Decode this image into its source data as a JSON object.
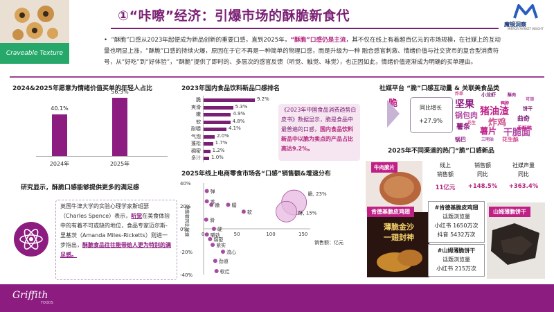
{
  "header": {
    "hero_caption": "Craveable Texture",
    "title": "①“咔嚓”经济：引爆市场的酥脆新食代",
    "brand_name": "魔镜洞察",
    "brand_sub": "MIRROR MARKET INSIGHT"
  },
  "intro": {
    "p1": "“酥脆”口感从2023年起便成为新品创新的重要口感，直到2025年，",
    "p1_hl": "“酥脆”口感仍是主流",
    "p1b": "，其不仅在线上有着超百亿元的市场规模，在社媒上的互动",
    "p2": "量也明显上涨，“酥脆”口感的持续火爆，原因在于它不再是一种简单的物理口感，而是升级为一种 融合感官刺激、情绪价值与社交货币的复合型消费符",
    "p3": "号，从“好吃”到“好体验”，“酥脆”提供了即时的、多层次的感官反馈（听觉、触觉、味觉），也正因如此，情绪价值逐渐成为明确的买单理由。"
  },
  "left_chart": {
    "title": "2024&2025年愿意为情绪价值买单的年轻人占比",
    "chart_data": {
      "type": "bar",
      "categories": [
        "2024年",
        "2025年"
      ],
      "values": [
        40.1,
        56.3
      ],
      "value_labels": [
        "40.1%",
        "56.3%"
      ],
      "ylim": [
        0,
        60
      ]
    }
  },
  "mid_chart": {
    "title": "2023年国内食品饮料新品口感排名",
    "chart_data": {
      "type": "bar",
      "categories": [
        "脆",
        "爽滑",
        "嫩",
        "软",
        "耐嚼",
        "气泡",
        "蓬松",
        "稠密",
        "多汁"
      ],
      "values": [
        9.2,
        5.3,
        4.9,
        4.8,
        4.1,
        2.0,
        1.7,
        1.2,
        1.0
      ],
      "value_labels": [
        "9.2%",
        "5.3%",
        "4.9%",
        "4.8%",
        "4.1%",
        "2.0%",
        "1.7%",
        "1.2%",
        "1.0%"
      ]
    },
    "note": "《2023年中国食品消费趋势白皮书》数据显示，脆是食品中最普遍的口感，",
    "note_hl": "国内食品饮料新品中以脆为卖点的产品占比高达9.2%。"
  },
  "bubble_chart": {
    "title": "2025年线上电商零食市场各“口感”销售额&增速分布",
    "ylabel": "销售额同比增速",
    "xlabel": "销售额：亿元",
    "chart_data": {
      "type": "scatter",
      "x_ticks": [
        "0",
        "50",
        "100",
        "150"
      ],
      "y_ticks": [
        "40%",
        "20%",
        "0%",
        "-20%",
        "-40%"
      ],
      "series": [
        {
          "name": "脆",
          "x": 140,
          "y": 23,
          "label": "脆, 23%"
        },
        {
          "name": "酥",
          "x": 128,
          "y": 15,
          "label": "酥, 15%"
        },
        {
          "name": "弹",
          "x": 5,
          "y": 33,
          "label": "弹"
        },
        {
          "name": "香",
          "x": 5,
          "y": 24,
          "label": "香"
        },
        {
          "name": "嫩",
          "x": 12,
          "y": 21,
          "label": "嫩"
        },
        {
          "name": "糯",
          "x": 38,
          "y": 21,
          "label": "糯"
        },
        {
          "name": "软",
          "x": 62,
          "y": 15,
          "label": "软"
        },
        {
          "name": "滑",
          "x": 4,
          "y": 8,
          "label": "滑"
        },
        {
          "name": "硬",
          "x": 16,
          "y": 0,
          "label": "硬"
        },
        {
          "name": "嚼劲",
          "x": 5,
          "y": -5,
          "label": "嚼劲"
        },
        {
          "name": "绵密",
          "x": 10,
          "y": -9,
          "label": "绵密"
        },
        {
          "name": "紧实",
          "x": 14,
          "y": -14,
          "label": "紧实"
        },
        {
          "name": "流心",
          "x": 30,
          "y": -20,
          "label": "流心"
        },
        {
          "name": "劲道",
          "x": 18,
          "y": -28,
          "label": "劲道"
        },
        {
          "name": "软烂",
          "x": 20,
          "y": -37,
          "label": "软烂"
        }
      ]
    }
  },
  "study": {
    "title": "研究显示，酥脆口感能够提供更多的满足感",
    "t1": "英国牛津大学的实验心理学家斯班瑟（Charles Spence）表示，",
    "t1_em": "听觉",
    "t2": "在美食体验中的有着不可或缺的地位，食品专家迈尔斯-里基茨（Amanda Miles-Ricketts）则进一步指出，",
    "t2_em": "酥脆食品往往能带给人更为特别的满足感。"
  },
  "social": {
    "title": "社媒平台 “脆”口感互动量 & 关联美食品类",
    "word": "脆",
    "growth_label": "同比增长",
    "growth_value": "+27.9%",
    "cloud": [
      "坚果",
      "猪油渣",
      "锅包肉",
      "炸鸡",
      "曲奇",
      "薯条",
      "薯片",
      "干脆面",
      "花生酥",
      "小龙虾",
      "锅巴",
      "香酥鸭",
      "三明治",
      "炸串",
      "饼干",
      "酥肉",
      "鸭脖",
      "可颂",
      "花生"
    ]
  },
  "channels": {
    "title": "2025年不同渠道的热门“脆”口感新品",
    "col1": "线上\n销售额",
    "col2": "销售额\n同比",
    "col3": "社媒声量\n同比",
    "v1": "11亿元",
    "v2": "+148.5%",
    "v3": "+363.4%",
    "prod1_tag": "牛肉脆片",
    "prod2_tag": "肯德基脆皮鸡翅",
    "prod2_img_text": "薄脆金沙\n一翅封神",
    "prod3_tag": "山姆薄脆饼干",
    "box2_title": "#肯德基脆皮鸡翅",
    "box2_sub": "话题浏览量",
    "box2_r1": "小红书  1650万次",
    "box2_r2": "抖音    5432万次",
    "box3_title": "#山姆薄脆饼干",
    "box3_sub": "话题浏览量",
    "box3_r1": "小红书  215万次"
  },
  "footer": {
    "logo": "Griffith",
    "sub": "FOODS"
  }
}
